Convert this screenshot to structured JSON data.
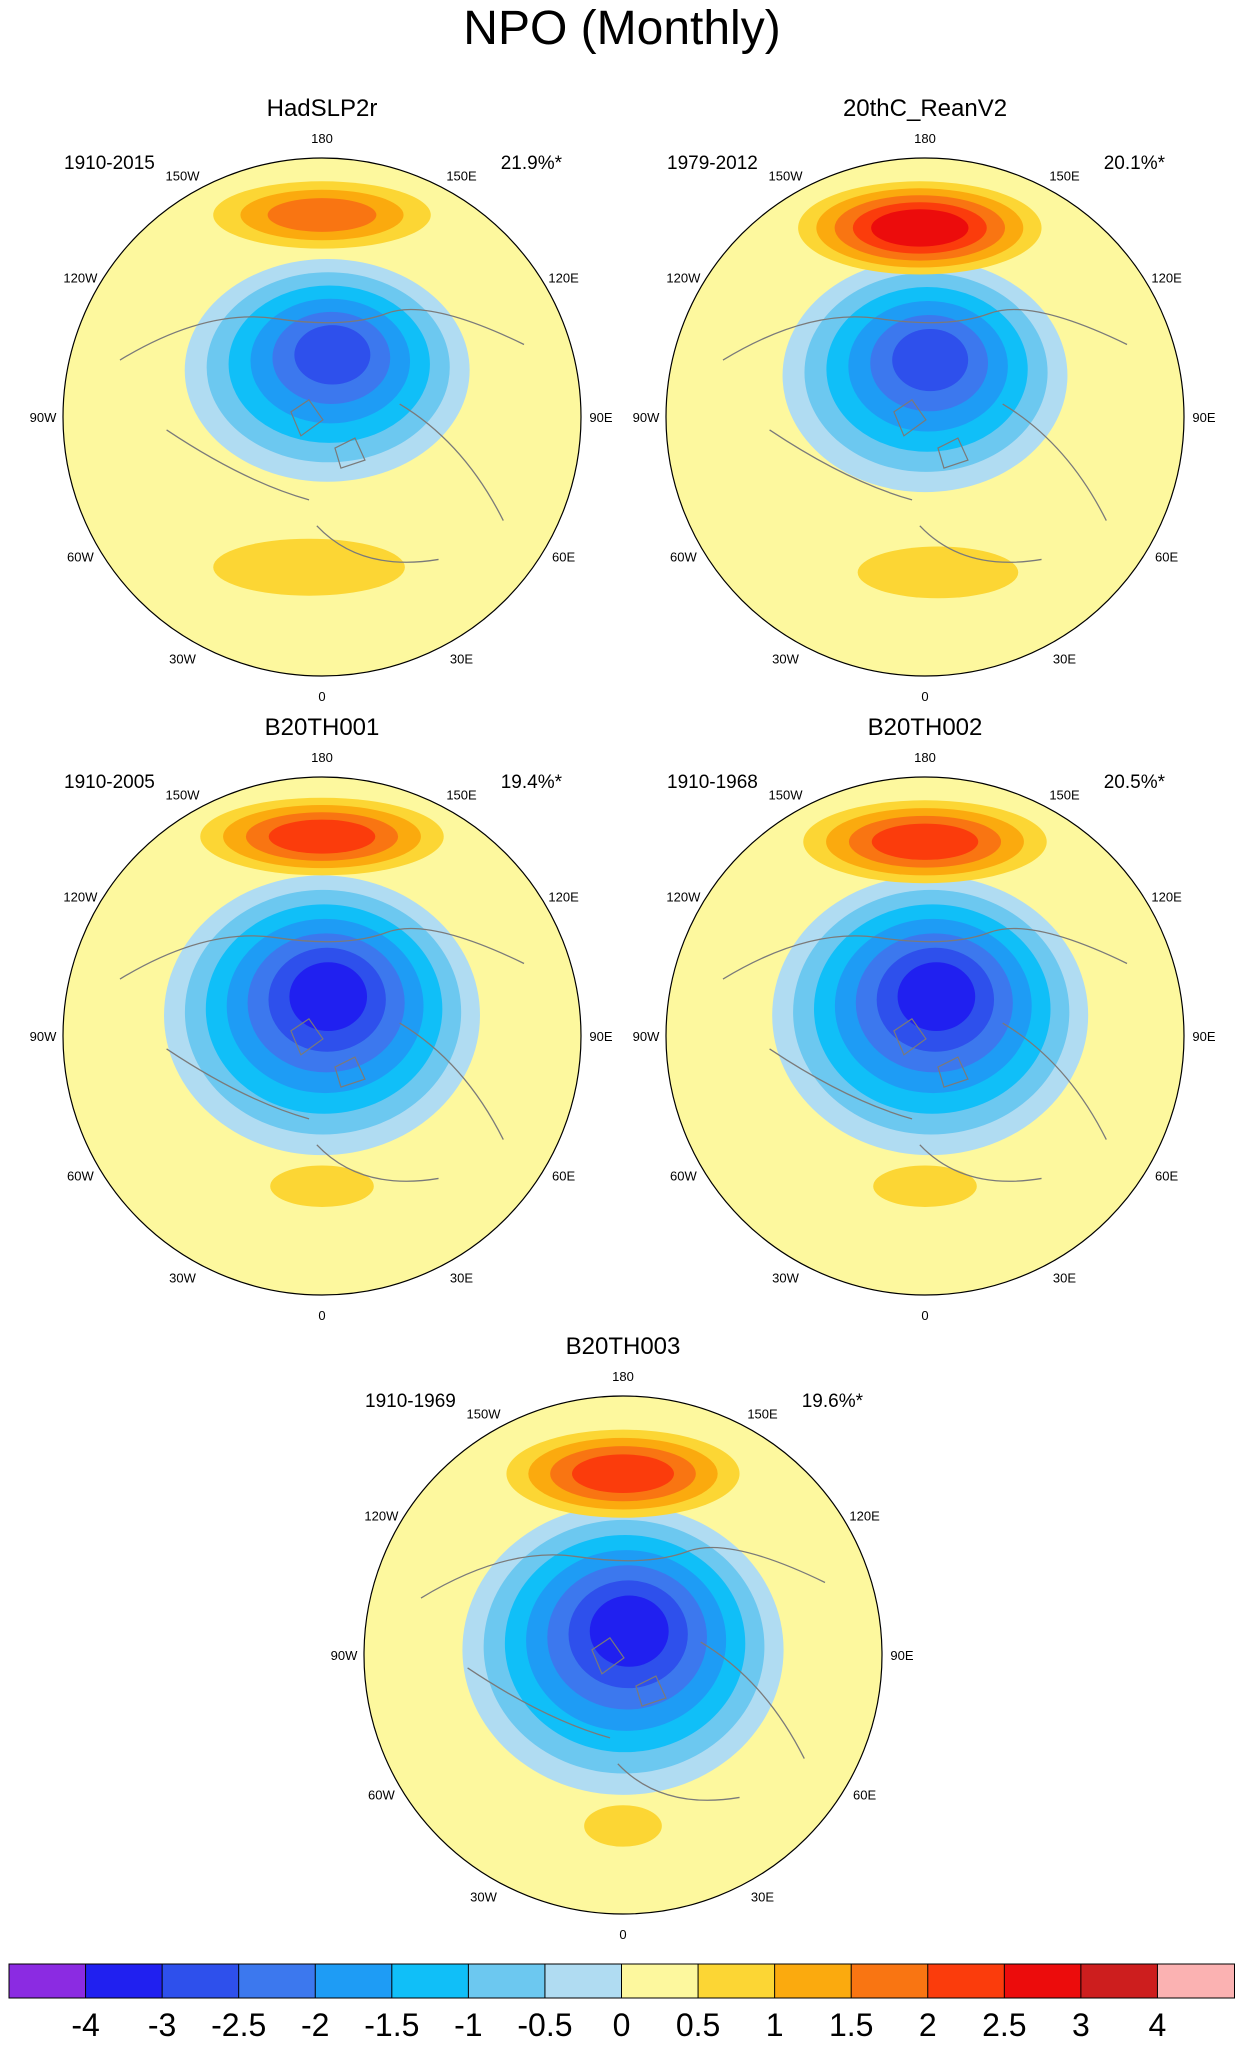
{
  "chart_data": {
    "type": "polar-contour-map",
    "title": "NPO (Monthly)",
    "longitude_labels": [
      "180",
      "150E",
      "120E",
      "90E",
      "60E",
      "30E",
      "0",
      "30W",
      "60W",
      "90W",
      "120W",
      "150W"
    ],
    "panels": [
      {
        "title": "HadSLP2r",
        "period": "1910-2015",
        "variance": "21.9%*",
        "min_level": -3,
        "max_level": 1.5
      },
      {
        "title": "20thC_ReanV2",
        "period": "1979-2012",
        "variance": "20.1%*",
        "min_level": -3,
        "max_level": 2.5
      },
      {
        "title": "B20TH001",
        "period": "1910-2005",
        "variance": "19.4%*",
        "min_level": -3.5,
        "max_level": 2
      },
      {
        "title": "B20TH002",
        "period": "1910-1968",
        "variance": "20.5%*",
        "min_level": -3.5,
        "max_level": 2
      },
      {
        "title": "B20TH003",
        "period": "1910-1969",
        "variance": "19.6%*",
        "min_level": -3.5,
        "max_level": 2
      }
    ],
    "colorbar": {
      "labels": [
        "-4",
        "-3",
        "-2.5",
        "-2",
        "-1.5",
        "-1",
        "-0.5",
        "0",
        "0.5",
        "1",
        "1.5",
        "2",
        "2.5",
        "3",
        "4"
      ],
      "colors": [
        "#8b2be2",
        "#2020f0",
        "#2e50ec",
        "#3c78ee",
        "#1e9cf5",
        "#10bff8",
        "#6cc8f0",
        "#b0dcf2",
        "#fdf89e",
        "#fcd634",
        "#fbaa0e",
        "#f97512",
        "#fb3c0c",
        "#ec0c0c",
        "#cd1e1e",
        "#fbb2b2"
      ]
    }
  }
}
